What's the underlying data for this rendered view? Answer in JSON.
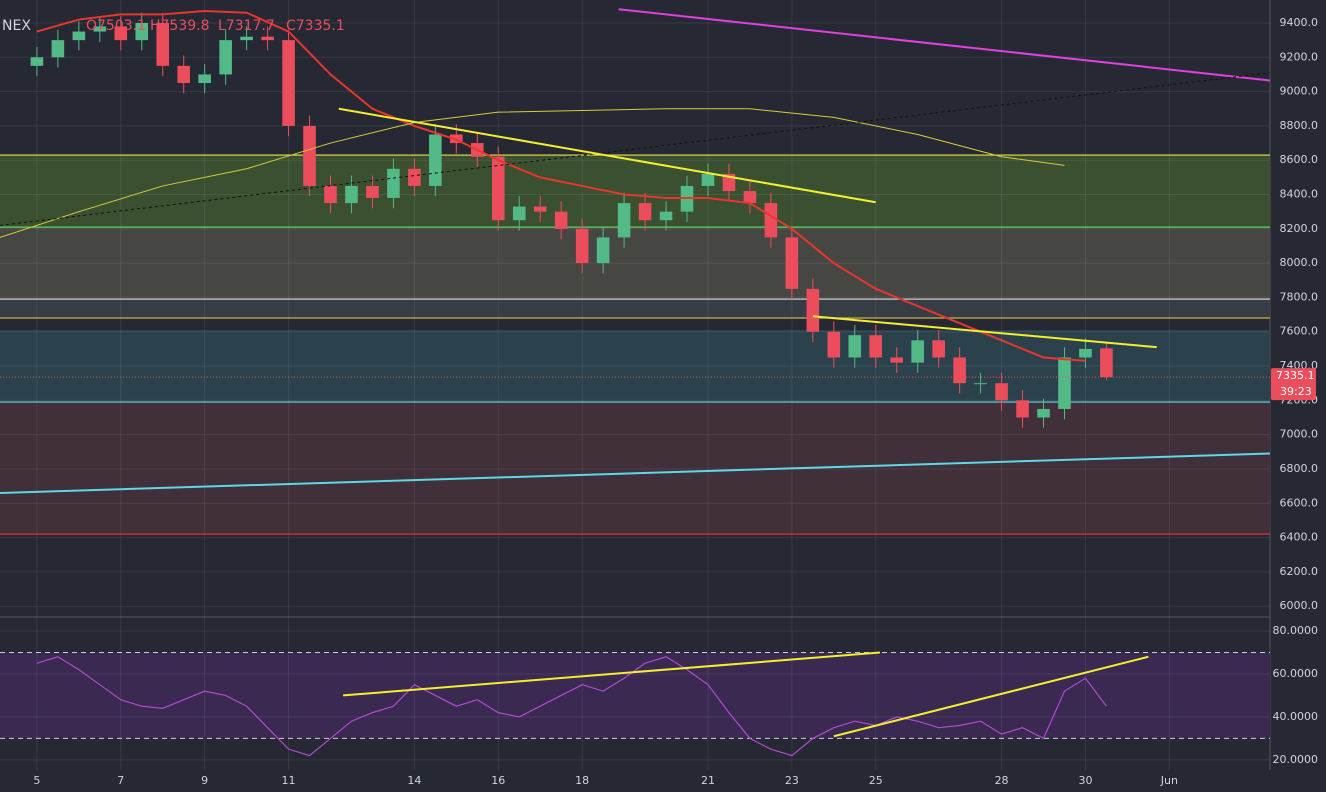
{
  "header": {
    "ticker": "NEX",
    "ohlc": [
      "O7503.1",
      "H7539.8",
      "L7317.7",
      "C7335.1"
    ],
    "countdown": "39:23"
  },
  "chart_data": [
    {
      "type": "candlestick",
      "xlim": [
        4.12,
        34.4
      ],
      "ylim": [
        5937,
        9534
      ],
      "up_color": "#53b987",
      "down_color": "#eb4d5c",
      "x": [
        5,
        5.5,
        6,
        6.5,
        7,
        7.5,
        8,
        8.5,
        9,
        9.5,
        10,
        10.5,
        11,
        11.5,
        12,
        12.5,
        13,
        13.5,
        14,
        14.5,
        15,
        15.5,
        16,
        16.5,
        17,
        17.5,
        18,
        18.5,
        19,
        19.5,
        20,
        20.5,
        21,
        21.5,
        22,
        22.5,
        23,
        23.5,
        24,
        24.5,
        25,
        25.5,
        26,
        26.5,
        27,
        27.5,
        28,
        28.5,
        29,
        29.5,
        30,
        30.5
      ],
      "open": [
        9150,
        9200,
        9300,
        9350,
        9380,
        9300,
        9400,
        9150,
        9050,
        9100,
        9300,
        9320,
        9300,
        8800,
        8450,
        8350,
        8450,
        8380,
        8550,
        8450,
        8750,
        8700,
        8620,
        8250,
        8330,
        8300,
        8200,
        8000,
        8150,
        8350,
        8250,
        8300,
        8450,
        8520,
        8420,
        8350,
        8150,
        7850,
        7600,
        7450,
        7580,
        7450,
        7420,
        7550,
        7450,
        7300,
        7300,
        7200,
        7100,
        7150,
        7450,
        7503.1
      ],
      "high": [
        9260,
        9360,
        9410,
        9440,
        9440,
        9460,
        9460,
        9210,
        9160,
        9360,
        9380,
        9380,
        9360,
        8860,
        8510,
        8510,
        8510,
        8610,
        8610,
        8810,
        8810,
        8760,
        8680,
        8390,
        8390,
        8360,
        8260,
        8210,
        8410,
        8410,
        8360,
        8510,
        8580,
        8580,
        8480,
        8410,
        8210,
        7910,
        7660,
        7640,
        7640,
        7510,
        7610,
        7610,
        7510,
        7360,
        7360,
        7260,
        7210,
        7510,
        7560,
        7539.8
      ],
      "low": [
        9090,
        9140,
        9240,
        9290,
        9240,
        9240,
        9090,
        8990,
        8990,
        9040,
        9240,
        9240,
        8740,
        8390,
        8290,
        8290,
        8320,
        8320,
        8390,
        8390,
        8640,
        8560,
        8190,
        8190,
        8240,
        8140,
        7940,
        7940,
        8090,
        8190,
        8190,
        8240,
        8390,
        8360,
        8290,
        8090,
        7790,
        7540,
        7390,
        7390,
        7390,
        7360,
        7360,
        7390,
        7240,
        7240,
        7140,
        7040,
        7040,
        7090,
        7390,
        7317.7
      ],
      "close": [
        9200,
        9300,
        9350,
        9380,
        9300,
        9400,
        9150,
        9050,
        9100,
        9300,
        9320,
        9300,
        8800,
        8450,
        8350,
        8450,
        8380,
        8550,
        8450,
        8750,
        8700,
        8620,
        8250,
        8330,
        8300,
        8200,
        8000,
        8150,
        8350,
        8250,
        8300,
        8450,
        8520,
        8420,
        8350,
        8150,
        7850,
        7600,
        7450,
        7580,
        7450,
        7420,
        7550,
        7450,
        7300,
        7300,
        7200,
        7100,
        7150,
        7450,
        7500,
        7335.1
      ],
      "yticks": [
        {
          "value": 6000,
          "label": "6000.0"
        },
        {
          "value": 6200,
          "label": "6200.0"
        },
        {
          "value": 6400,
          "label": "6400.0"
        },
        {
          "value": 6600,
          "label": "6600.0"
        },
        {
          "value": 6800,
          "label": "6800.0"
        },
        {
          "value": 7000,
          "label": "7000.0"
        },
        {
          "value": 7200,
          "label": "7200.0"
        },
        {
          "value": 7400,
          "label": "7400.0"
        },
        {
          "value": 7600,
          "label": "7600.0"
        },
        {
          "value": 7800,
          "label": "7800.0"
        },
        {
          "value": 8000,
          "label": "8000.0"
        },
        {
          "value": 8200,
          "label": "8200.0"
        },
        {
          "value": 8400,
          "label": "8400.0"
        },
        {
          "value": 8600,
          "label": "8600.0"
        },
        {
          "value": 8800,
          "label": "8800.0"
        },
        {
          "value": 9000,
          "label": "9000.0"
        },
        {
          "value": 9200,
          "label": "9200.0"
        },
        {
          "value": 9400,
          "label": "9400.0"
        }
      ],
      "zones": [
        {
          "from": 8630,
          "to": 8210,
          "color": "#3d5431"
        },
        {
          "from": 8210,
          "to": 7790,
          "color": "#4a4a45"
        },
        {
          "from": 7790,
          "to": 7680,
          "color": "#3a3f47"
        },
        {
          "from": 7610,
          "to": 7190,
          "color": "#2c4550"
        },
        {
          "from": 7190,
          "to": 6420,
          "color": "#45303a"
        }
      ],
      "levels": [
        {
          "value": 8630,
          "color": "#e6e04a"
        },
        {
          "value": 8210,
          "color": "#5fd35f"
        },
        {
          "value": 7790,
          "color": "#cccccc"
        },
        {
          "value": 7680,
          "color": "#c8b44a"
        },
        {
          "value": 7190,
          "color": "#5fd8e8"
        },
        {
          "value": 6420,
          "color": "#e03030"
        }
      ],
      "lines": [
        {
          "color": "#e8352e",
          "width": 2,
          "x": [
            5,
            6,
            7,
            8,
            9,
            10,
            11,
            12,
            13,
            14,
            15,
            16,
            17,
            18,
            19,
            20,
            21,
            22,
            23,
            24,
            25,
            26,
            27,
            28,
            29,
            30
          ],
          "values": [
            9350,
            9420,
            9450,
            9450,
            9470,
            9460,
            9350,
            9100,
            8900,
            8800,
            8720,
            8600,
            8500,
            8450,
            8400,
            8380,
            8380,
            8350,
            8200,
            8000,
            7850,
            7750,
            7650,
            7550,
            7450,
            7430
          ]
        },
        {
          "color": "#d9cc3a",
          "width": 1,
          "x": [
            4.12,
            6,
            8,
            10,
            12,
            14,
            16,
            18,
            20,
            22,
            24,
            26,
            28,
            29.5
          ],
          "values": [
            8150,
            8300,
            8450,
            8550,
            8700,
            8820,
            8880,
            8890,
            8900,
            8900,
            8850,
            8750,
            8620,
            8570
          ]
        }
      ],
      "trendlines": [
        {
          "color": "#e040e0",
          "dash": false,
          "from": [
            18.87,
            9480
          ],
          "to": [
            34.4,
            9065
          ]
        },
        {
          "color": "#111111",
          "dash": true,
          "from": [
            4.12,
            8220
          ],
          "to": [
            34.4,
            9110
          ]
        },
        {
          "color": "#f2ee30",
          "dash": false,
          "from": [
            12.2,
            8900
          ],
          "to": [
            25,
            8355
          ]
        },
        {
          "color": "#f2ee30",
          "dash": false,
          "from": [
            23.5,
            7690
          ],
          "to": [
            31.7,
            7510
          ]
        },
        {
          "color": "#5fd8e8",
          "dash": false,
          "from": [
            4.12,
            6660
          ],
          "to": [
            34.4,
            6890
          ]
        }
      ]
    },
    {
      "type": "line",
      "xlim": [
        4.12,
        34.4
      ],
      "ylim": [
        15.3,
        86.5
      ],
      "color": "#b04ad0",
      "bands": [
        70,
        30
      ],
      "x": [
        5,
        5.5,
        6,
        6.5,
        7,
        7.5,
        8,
        8.5,
        9,
        9.5,
        10,
        10.5,
        11,
        11.5,
        12,
        12.5,
        13,
        13.5,
        14,
        14.5,
        15,
        15.5,
        16,
        16.5,
        17,
        17.5,
        18,
        18.5,
        19,
        19.5,
        20,
        20.5,
        21,
        21.5,
        22,
        22.5,
        23,
        23.5,
        24,
        24.5,
        25,
        25.5,
        26,
        26.5,
        27,
        27.5,
        28,
        28.5,
        29,
        29.5,
        30,
        30.5
      ],
      "values": [
        65,
        68,
        62,
        55,
        48,
        45,
        44,
        48,
        52,
        50,
        45,
        35,
        25,
        22,
        30,
        38,
        42,
        45,
        55,
        50,
        45,
        48,
        42,
        40,
        45,
        50,
        55,
        52,
        58,
        65,
        68,
        62,
        55,
        42,
        30,
        25,
        22,
        30,
        35,
        38,
        36,
        40,
        38,
        35,
        36,
        38,
        32,
        35,
        30,
        52,
        58,
        45
      ],
      "yticks": [
        {
          "value": 20,
          "label": "20.0000"
        },
        {
          "value": 40,
          "label": "40.0000"
        },
        {
          "value": 60,
          "label": "60.0000"
        },
        {
          "value": 80,
          "label": "80.0000"
        }
      ],
      "xticks": [
        5,
        7,
        9,
        11,
        14,
        16,
        18,
        21,
        23,
        25,
        28,
        30,
        {
          "value": 32,
          "label": "Jun"
        }
      ],
      "trendlines": [
        {
          "color": "#f2ee30",
          "from": [
            12.3,
            50
          ],
          "to": [
            25.1,
            70
          ]
        },
        {
          "color": "#f2ee30",
          "from": [
            24,
            31
          ],
          "to": [
            31.5,
            68
          ]
        }
      ]
    }
  ]
}
